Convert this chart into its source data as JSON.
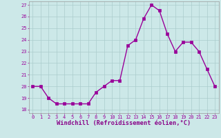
{
  "x": [
    0,
    1,
    2,
    3,
    4,
    5,
    6,
    7,
    8,
    9,
    10,
    11,
    12,
    13,
    14,
    15,
    16,
    17,
    18,
    19,
    20,
    21,
    22,
    23
  ],
  "y": [
    20.0,
    20.0,
    19.0,
    18.5,
    18.5,
    18.5,
    18.5,
    18.5,
    19.5,
    20.0,
    20.5,
    20.5,
    23.5,
    24.0,
    25.8,
    27.0,
    26.5,
    24.5,
    23.0,
    23.8,
    23.8,
    23.0,
    21.5,
    20.0
  ],
  "line_color": "#990099",
  "marker": "s",
  "markersize": 2.2,
  "linewidth": 1.0,
  "bg_color": "#cce8e8",
  "grid_color": "#aacccc",
  "xlabel": "Windchill (Refroidissement éolien,°C)",
  "xlabel_color": "#880088",
  "ylabel_ticks": [
    18,
    19,
    20,
    21,
    22,
    23,
    24,
    25,
    26,
    27
  ],
  "ylim": [
    17.7,
    27.3
  ],
  "xlim": [
    -0.5,
    23.5
  ],
  "xticks": [
    0,
    1,
    2,
    3,
    4,
    5,
    6,
    7,
    8,
    9,
    10,
    11,
    12,
    13,
    14,
    15,
    16,
    17,
    18,
    19,
    20,
    21,
    22,
    23
  ],
  "tick_fontsize": 5.0,
  "xlabel_fontsize": 6.2
}
